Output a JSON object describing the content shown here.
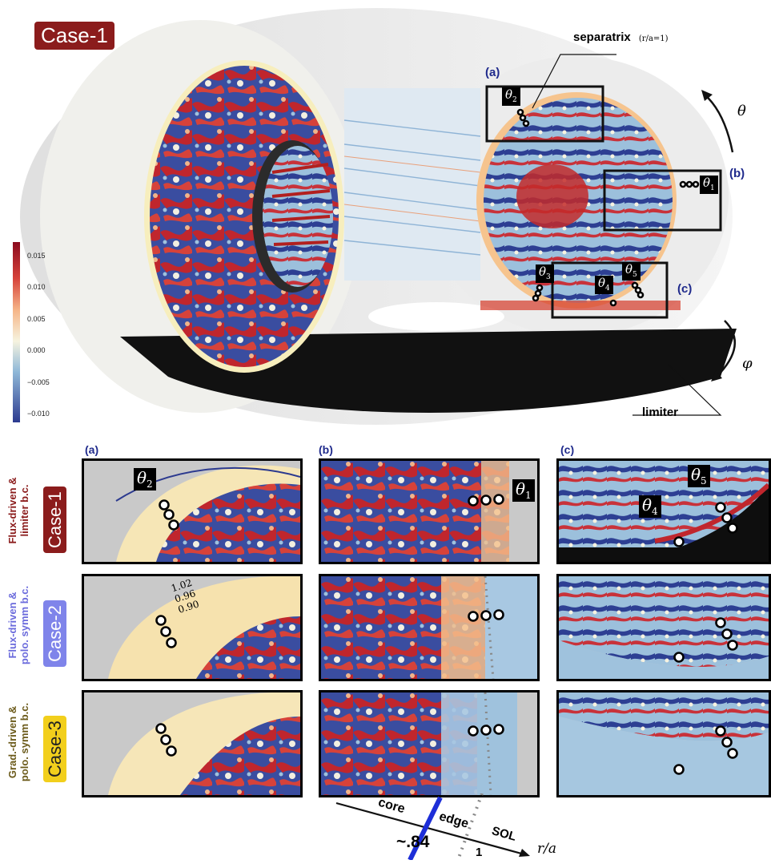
{
  "top": {
    "case_label": "Case-1",
    "separatrix_label": "separatrix",
    "separatrix_note": "(r/a=1)",
    "limiter_label": "limiter",
    "theta_symbol": "θ",
    "phi_symbol": "φ",
    "box_labels": [
      "(a)",
      "(b)",
      "(c)"
    ],
    "theta_tags": {
      "t1": "1",
      "t2": "2",
      "t3": "3",
      "t4": "4",
      "t5": "5"
    }
  },
  "colorbar": {
    "ticks": [
      "0.015",
      "0.010",
      "0.005",
      "0.000",
      "−0.005",
      "−0.010"
    ],
    "colors": {
      "max": "#8b0a1e",
      "mid": "#f6f3df",
      "min": "#2c3a8f"
    }
  },
  "grid": {
    "column_labels": [
      "(a)",
      "(b)",
      "(c)"
    ],
    "rows": [
      {
        "desc_line1": "Flux-driven &",
        "desc_line2": "limiter b.c.",
        "case": "Case-1",
        "desc_color": "#8b1c1c",
        "badge_color": "#8b1c1c"
      },
      {
        "desc_line1": "Flux-driven &",
        "desc_line2": "polo. symm b.c.",
        "case": "Case-2",
        "desc_color": "#6b6bdc",
        "badge_color": "#7f84ea"
      },
      {
        "desc_line1": "Grad.-driven &",
        "desc_line2": "polo. symm b.c.",
        "case": "Case-3",
        "desc_color": "#6b5a1a",
        "badge_color": "#f2cf1c"
      }
    ],
    "panel_tags": {
      "a1": "2",
      "b1": "1",
      "c1_left": "4",
      "c1_right": "5"
    },
    "radii_labels": [
      "1.02",
      "0.96",
      "0.90"
    ]
  },
  "axis": {
    "core": "core",
    "edge": "edge",
    "sol": "SOL",
    "boundary_value": "~.84",
    "sep_value": "1",
    "xlabel": "r/a"
  }
}
